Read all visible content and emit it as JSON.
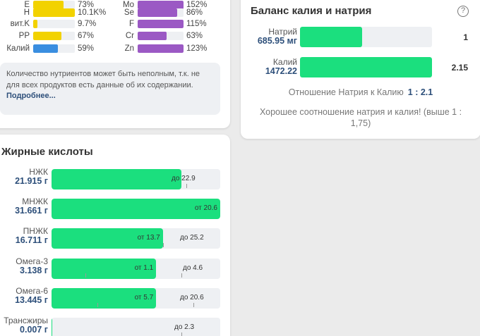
{
  "vitamins_minerals": {
    "left_column": [
      {
        "label": "E",
        "value": "73%",
        "pct": 73,
        "color": "#f2d200"
      },
      {
        "label": "H",
        "value": "10.1K%",
        "pct": 100,
        "color": "#f2d200"
      },
      {
        "label": "вит.K",
        "value": "9.7%",
        "pct": 9.7,
        "color": "#f2d200"
      },
      {
        "label": "PP",
        "value": "67%",
        "pct": 67,
        "color": "#f2d200"
      },
      {
        "label": "Калий",
        "value": "59%",
        "pct": 59,
        "color": "#3a8ee0"
      }
    ],
    "right_column": [
      {
        "label": "Mo",
        "value": "152%",
        "pct": 100,
        "color": "#9b59c4"
      },
      {
        "label": "Se",
        "value": "86%",
        "pct": 86,
        "color": "#9b59c4"
      },
      {
        "label": "F",
        "value": "115%",
        "pct": 100,
        "color": "#9b59c4"
      },
      {
        "label": "Cr",
        "value": "63%",
        "pct": 63,
        "color": "#9b59c4"
      },
      {
        "label": "Zn",
        "value": "123%",
        "pct": 100,
        "color": "#9b59c4"
      }
    ],
    "note_text": "Количество нутриентов может быть неполным, т.к. не для всех продуктов есть данные об их содержании.",
    "note_link": "Подробнее..."
  },
  "balance": {
    "title": "Баланс калия и натрия",
    "help_icon": "?",
    "rows": [
      {
        "name": "Натрий",
        "amount": "685.95 мг",
        "value": "1",
        "fill_pct": 47
      },
      {
        "name": "Калий",
        "amount": "1472.22",
        "value": "2.15",
        "fill_pct": 100
      }
    ],
    "ratio_label": "Отношение Натрия к Калию",
    "ratio_value": "1 : 2.1",
    "ratio_note": "Хорошее соотношение натрия и калия! (выше 1 : 1,75)"
  },
  "fatty_acids": {
    "title": "Жирные кислоты",
    "rows": [
      {
        "name": "НЖК",
        "amount": "21.915 г",
        "fill_pct": 77,
        "inner_label": "",
        "right_label": "до 22.9",
        "ticks": [
          80
        ]
      },
      {
        "name": "МНЖК",
        "amount": "31.661 г",
        "fill_pct": 100,
        "inner_label": "от 20.6",
        "right_label": "",
        "ticks": []
      },
      {
        "name": "ПНЖК",
        "amount": "16.711 г",
        "fill_pct": 66,
        "inner_label": "от 13.7",
        "right_label": "до 25.2",
        "ticks": [
          66,
          100
        ]
      },
      {
        "name": "Омега-3",
        "amount": "3.138 г",
        "fill_pct": 62,
        "inner_label": "от 1.1",
        "right_label": "до 4.6",
        "ticks": [
          20,
          77
        ]
      },
      {
        "name": "Омега-6",
        "amount": "13.445 г",
        "fill_pct": 62,
        "inner_label": "от 5.7",
        "right_label": "до 20.6",
        "ticks": [
          27,
          84
        ]
      },
      {
        "name": "Трансжиры",
        "amount": "0.007 г",
        "fill_pct": 0.5,
        "inner_label": "",
        "right_label": "до 2.3",
        "ticks": [
          77
        ]
      }
    ]
  },
  "colors": {
    "green": "#1bdf7e",
    "navy": "#2d4f7a",
    "track": "#eef0f3"
  }
}
